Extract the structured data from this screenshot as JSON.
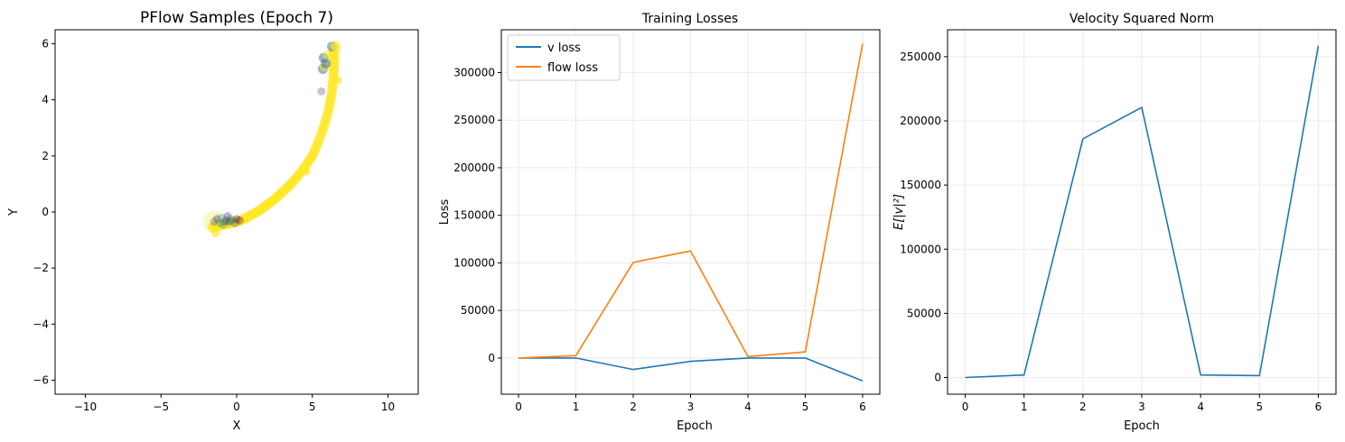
{
  "colors": {
    "series_blue": "#1f77b4",
    "series_orange": "#ff7f0e",
    "grid": "#e5e5e5",
    "scatter_high": "#fde725",
    "scatter_mid": "#21918c",
    "scatter_low": "#440154"
  },
  "chart_data": [
    {
      "type": "scatter",
      "title": "PFlow Samples (Epoch 7)",
      "xlabel": "X",
      "ylabel": "Y",
      "xlim": [
        -12,
        12
      ],
      "ylim": [
        -6.5,
        6.5
      ],
      "xticks": [
        -10,
        -5,
        0,
        5,
        10
      ],
      "yticks": [
        -6,
        -4,
        -2,
        0,
        2,
        4,
        6
      ],
      "grid": false,
      "colormap": "viridis",
      "curve_points": [
        [
          -1.6,
          -0.55
        ],
        [
          -1.2,
          -0.5
        ],
        [
          -0.8,
          -0.45
        ],
        [
          -0.4,
          -0.4
        ],
        [
          0.0,
          -0.35
        ],
        [
          0.5,
          -0.25
        ],
        [
          1.0,
          -0.1
        ],
        [
          1.5,
          0.05
        ],
        [
          2.0,
          0.25
        ],
        [
          2.5,
          0.45
        ],
        [
          3.0,
          0.7
        ],
        [
          3.5,
          0.95
        ],
        [
          4.0,
          1.25
        ],
        [
          4.5,
          1.6
        ],
        [
          5.0,
          2.0
        ],
        [
          5.4,
          2.5
        ],
        [
          5.8,
          3.1
        ],
        [
          6.1,
          3.7
        ],
        [
          6.3,
          4.3
        ],
        [
          6.4,
          4.9
        ],
        [
          6.45,
          5.4
        ],
        [
          6.4,
          5.8
        ]
      ],
      "cluster_points": [
        [
          -1.3,
          -0.25
        ],
        [
          -1.0,
          -0.2
        ],
        [
          -0.7,
          -0.3
        ],
        [
          -0.5,
          -0.35
        ],
        [
          -0.3,
          -0.3
        ],
        [
          -0.1,
          -0.4
        ],
        [
          0.2,
          -0.3
        ],
        [
          -0.9,
          -0.45
        ],
        [
          -1.5,
          -0.35
        ],
        [
          -0.6,
          -0.15
        ],
        [
          -0.4,
          -0.25
        ],
        [
          -0.8,
          -0.35
        ],
        [
          0.0,
          -0.25
        ],
        [
          -1.1,
          -0.4
        ]
      ],
      "top_points": [
        [
          5.7,
          5.1
        ],
        [
          5.8,
          5.2
        ],
        [
          6.3,
          5.9
        ],
        [
          6.5,
          5.95
        ],
        [
          5.9,
          5.3
        ],
        [
          6.6,
          5.85
        ],
        [
          5.75,
          5.5
        ],
        [
          6.0,
          5.6
        ]
      ],
      "outlier_points": [
        [
          5.6,
          4.3
        ],
        [
          6.7,
          4.7
        ],
        [
          4.6,
          1.45
        ],
        [
          -1.4,
          -0.75
        ]
      ]
    },
    {
      "type": "line",
      "title": "Training Losses",
      "xlabel": "Epoch",
      "ylabel": "Loss",
      "x": [
        0,
        1,
        2,
        3,
        4,
        5,
        6
      ],
      "xlim": [
        -0.3,
        6.3
      ],
      "ylim": [
        -38000,
        345000
      ],
      "xticks": [
        0,
        1,
        2,
        3,
        4,
        5,
        6
      ],
      "yticks": [
        0,
        50000,
        100000,
        150000,
        200000,
        250000,
        300000
      ],
      "grid": true,
      "legend_position": "top-left",
      "series": [
        {
          "name": "v loss",
          "color": "#1f77b4",
          "values": [
            0,
            0,
            -12000,
            -3500,
            0,
            0,
            -24000
          ]
        },
        {
          "name": "flow loss",
          "color": "#ff7f0e",
          "values": [
            0,
            2500,
            100500,
            112500,
            1500,
            6500,
            330500
          ]
        }
      ]
    },
    {
      "type": "line",
      "title": "Velocity Squared Norm",
      "xlabel": "Epoch",
      "ylabel": "E[|v|²]",
      "x": [
        0,
        1,
        2,
        3,
        4,
        5,
        6
      ],
      "xlim": [
        -0.3,
        6.3
      ],
      "ylim": [
        -13000,
        271000
      ],
      "xticks": [
        0,
        1,
        2,
        3,
        4,
        5,
        6
      ],
      "yticks": [
        0,
        50000,
        100000,
        150000,
        200000,
        250000
      ],
      "grid": true,
      "series": [
        {
          "color": "#1f77b4",
          "values": [
            0,
            2000,
            186000,
            210500,
            2000,
            1500,
            258500
          ]
        }
      ]
    }
  ]
}
